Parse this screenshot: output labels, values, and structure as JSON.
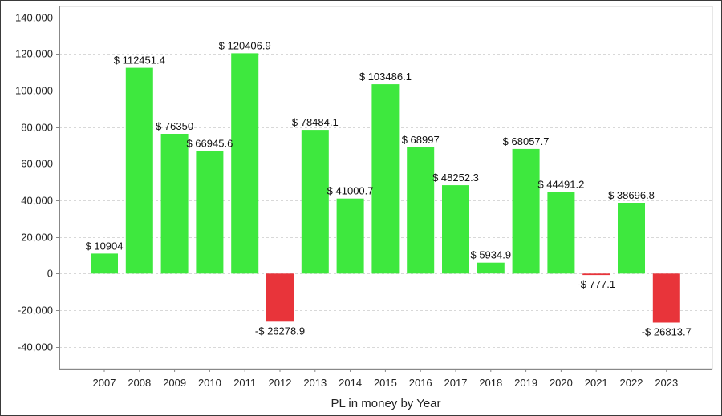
{
  "chart_data": {
    "type": "bar",
    "title": "",
    "xlabel": "PL in money by Year",
    "ylabel": "",
    "categories": [
      "2007",
      "2008",
      "2009",
      "2010",
      "2011",
      "2012",
      "2013",
      "2014",
      "2015",
      "2016",
      "2017",
      "2018",
      "2019",
      "2020",
      "2021",
      "2022",
      "2023"
    ],
    "values": [
      10904,
      112451.4,
      76350,
      66945.6,
      120406.9,
      -26278.9,
      78484.1,
      41000.7,
      103486.1,
      68997,
      48252.3,
      5934.9,
      68057.7,
      44491.2,
      -777.1,
      38696.8,
      -26813.7
    ],
    "data_labels": [
      "$ 10904",
      "$ 112451.4",
      "$ 76350",
      "$ 66945.6",
      "$ 120406.9",
      "-$ 26278.9",
      "$ 78484.1",
      "$ 41000.7",
      "$ 103486.1",
      "$ 68997",
      "$ 48252.3",
      "$ 5934.9",
      "$ 68057.7",
      "$ 44491.2",
      "-$ 777.1",
      "$ 38696.8",
      "-$ 26813.7"
    ],
    "ylim": [
      -52000,
      146000
    ],
    "y_ticks": [
      -40000,
      -20000,
      0,
      20000,
      40000,
      60000,
      80000,
      100000,
      120000,
      140000
    ],
    "y_tick_labels": [
      "-40,000",
      "-20,000",
      "0",
      "20,000",
      "40,000",
      "60,000",
      "80,000",
      "100,000",
      "120,000",
      "140,000"
    ],
    "grid": true,
    "legend": "none",
    "colors": {
      "positive": "#3ee83e",
      "negative": "#e8343a",
      "grid": "#d8d8d8",
      "axis": "#888888"
    }
  }
}
